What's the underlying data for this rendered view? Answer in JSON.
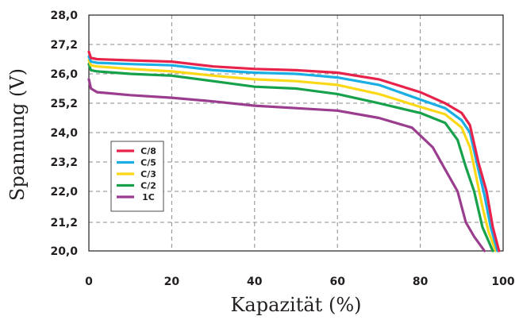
{
  "chart_data": {
    "type": "line",
    "title": "",
    "xlabel": "Kapazität (%)",
    "ylabel": "Spannung (V)",
    "xlim": [
      0,
      100
    ],
    "ylim": [
      20.0,
      28.0
    ],
    "x_ticks": [
      "0",
      "20",
      "40",
      "60",
      "80",
      "100"
    ],
    "y_ticks": [
      "20,0",
      "21,2",
      "22,0",
      "23,2",
      "24,0",
      "25,2",
      "26,0",
      "27,2",
      "28,0"
    ],
    "grid": true,
    "legend_position": "left-middle",
    "series": [
      {
        "name": "C/8",
        "color": "#e8234b",
        "points": [
          [
            0,
            26.9
          ],
          [
            0.5,
            26.65
          ],
          [
            2,
            26.6
          ],
          [
            10,
            26.55
          ],
          [
            20,
            26.5
          ],
          [
            30,
            26.3
          ],
          [
            40,
            26.2
          ],
          [
            50,
            26.15
          ],
          [
            60,
            26.05
          ],
          [
            70,
            25.85
          ],
          [
            80,
            25.5
          ],
          [
            86,
            25.2
          ],
          [
            90,
            24.8
          ],
          [
            92,
            24.3
          ],
          [
            94,
            23.2
          ],
          [
            96,
            22.0
          ],
          [
            97.5,
            21.0
          ],
          [
            99,
            20.0
          ]
        ]
      },
      {
        "name": "C/5",
        "color": "#1aaee5",
        "points": [
          [
            0,
            26.7
          ],
          [
            0.5,
            26.5
          ],
          [
            2,
            26.45
          ],
          [
            10,
            26.4
          ],
          [
            20,
            26.35
          ],
          [
            30,
            26.15
          ],
          [
            40,
            26.05
          ],
          [
            50,
            26.0
          ],
          [
            60,
            25.9
          ],
          [
            70,
            25.7
          ],
          [
            80,
            25.3
          ],
          [
            86,
            25.0
          ],
          [
            90,
            24.5
          ],
          [
            92,
            24.0
          ],
          [
            94,
            22.9
          ],
          [
            95.5,
            21.9
          ],
          [
            97,
            21.0
          ],
          [
            98.6,
            20.0
          ]
        ]
      },
      {
        "name": "C/3",
        "color": "#fbd817",
        "points": [
          [
            0,
            26.55
          ],
          [
            0.5,
            26.35
          ],
          [
            2,
            26.3
          ],
          [
            10,
            26.2
          ],
          [
            20,
            26.1
          ],
          [
            30,
            25.95
          ],
          [
            40,
            25.85
          ],
          [
            50,
            25.8
          ],
          [
            60,
            25.7
          ],
          [
            70,
            25.45
          ],
          [
            80,
            25.05
          ],
          [
            86,
            24.75
          ],
          [
            90,
            24.2
          ],
          [
            92,
            23.6
          ],
          [
            93.5,
            22.6
          ],
          [
            95,
            21.6
          ],
          [
            96.5,
            20.8
          ],
          [
            98.2,
            20.0
          ]
        ]
      },
      {
        "name": "C/2",
        "color": "#16a14a",
        "points": [
          [
            0,
            26.4
          ],
          [
            0.5,
            26.15
          ],
          [
            2,
            26.1
          ],
          [
            10,
            26.0
          ],
          [
            20,
            25.95
          ],
          [
            30,
            25.8
          ],
          [
            40,
            25.65
          ],
          [
            50,
            25.6
          ],
          [
            60,
            25.45
          ],
          [
            70,
            25.2
          ],
          [
            80,
            24.8
          ],
          [
            86,
            24.4
          ],
          [
            89,
            23.8
          ],
          [
            91,
            23.0
          ],
          [
            93,
            22.0
          ],
          [
            95,
            21.0
          ],
          [
            97.5,
            20.0
          ]
        ]
      },
      {
        "name": "1C",
        "color": "#9b3d8e",
        "points": [
          [
            0,
            25.85
          ],
          [
            0.5,
            25.6
          ],
          [
            2,
            25.5
          ],
          [
            10,
            25.42
          ],
          [
            20,
            25.35
          ],
          [
            30,
            25.25
          ],
          [
            40,
            25.1
          ],
          [
            50,
            25.0
          ],
          [
            60,
            24.9
          ],
          [
            70,
            24.6
          ],
          [
            78,
            24.2
          ],
          [
            83,
            23.6
          ],
          [
            86,
            22.9
          ],
          [
            89,
            22.0
          ],
          [
            91,
            21.2
          ],
          [
            93,
            20.6
          ],
          [
            95.5,
            20.0
          ]
        ]
      }
    ]
  }
}
